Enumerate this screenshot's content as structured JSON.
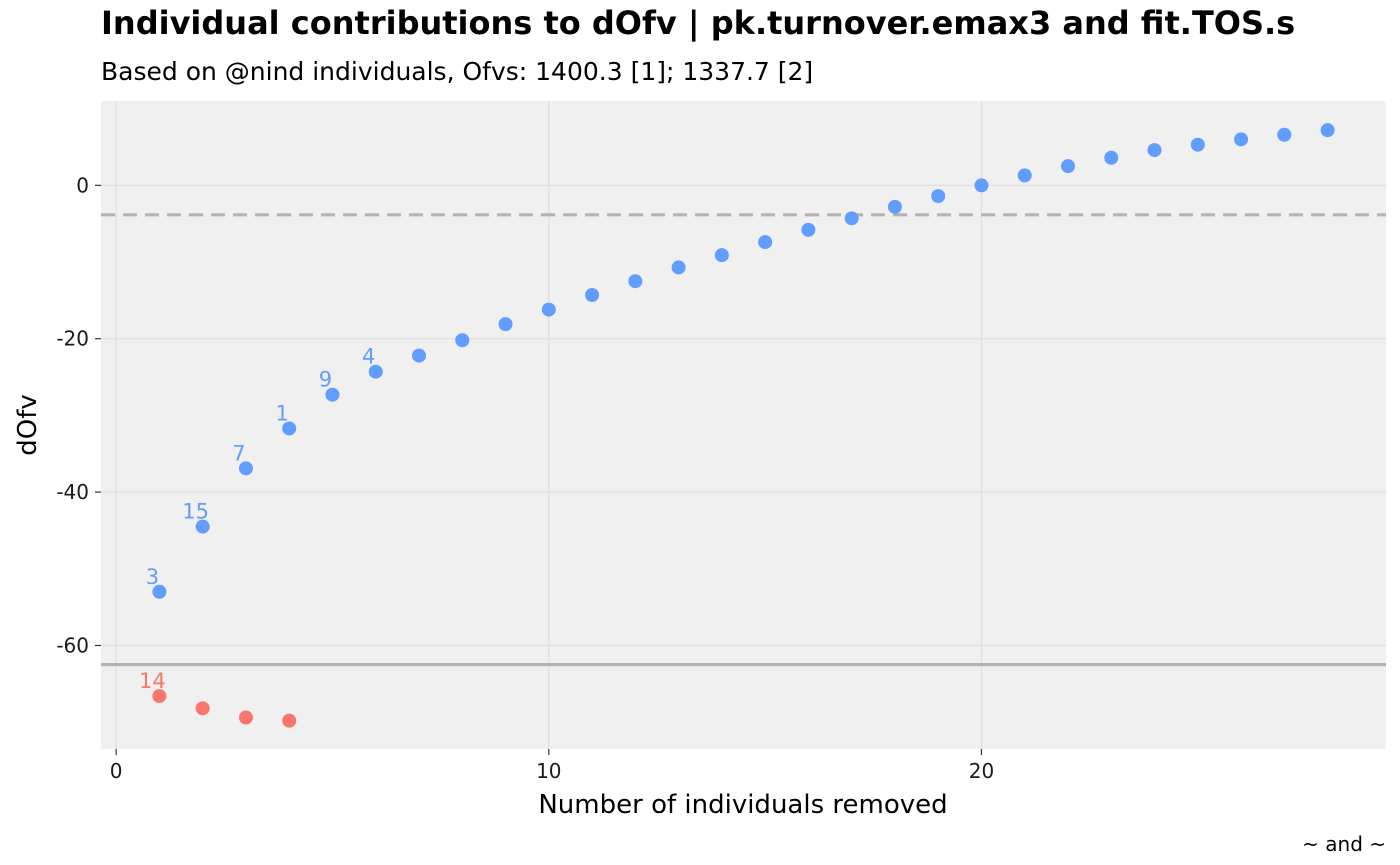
{
  "chart_data": {
    "type": "scatter",
    "title": "Individual contributions to dOfv | pk.turnover.emax3 and fit.TOS.s",
    "subtitle": "Based on @nind individuals, Ofvs: 1400.3 [1]; 1337.7 [2]",
    "xlabel": "Number of individuals removed",
    "ylabel": "dOfv",
    "caption": "~ and ~",
    "xlim": [
      -0.35,
      29.35
    ],
    "ylim": [
      -73.5,
      11
    ],
    "x_ticks": [
      0,
      10,
      20
    ],
    "y_ticks": [
      0,
      -20,
      -40,
      -60
    ],
    "grid": true,
    "reference_lines": [
      {
        "style": "dashed",
        "y": -3.84,
        "color": "#b3b3b3"
      },
      {
        "style": "solid",
        "y": -62.5,
        "color": "#b3b3b3"
      }
    ],
    "series": [
      {
        "color": "#619cff",
        "points": [
          {
            "x": 1,
            "y": -53.0,
            "label": "3"
          },
          {
            "x": 2,
            "y": -44.5,
            "label": "15"
          },
          {
            "x": 3,
            "y": -36.9,
            "label": "7"
          },
          {
            "x": 4,
            "y": -31.7,
            "label": "1"
          },
          {
            "x": 5,
            "y": -27.3,
            "label": "9"
          },
          {
            "x": 6,
            "y": -24.3,
            "label": "4"
          },
          {
            "x": 7,
            "y": -22.2,
            "label": ""
          },
          {
            "x": 8,
            "y": -20.2,
            "label": ""
          },
          {
            "x": 9,
            "y": -18.1,
            "label": ""
          },
          {
            "x": 10,
            "y": -16.2,
            "label": ""
          },
          {
            "x": 11,
            "y": -14.3,
            "label": ""
          },
          {
            "x": 12,
            "y": -12.5,
            "label": ""
          },
          {
            "x": 13,
            "y": -10.7,
            "label": ""
          },
          {
            "x": 14,
            "y": -9.1,
            "label": ""
          },
          {
            "x": 15,
            "y": -7.4,
            "label": ""
          },
          {
            "x": 16,
            "y": -5.8,
            "label": ""
          },
          {
            "x": 17,
            "y": -4.3,
            "label": ""
          },
          {
            "x": 18,
            "y": -2.8,
            "label": ""
          },
          {
            "x": 19,
            "y": -1.4,
            "label": ""
          },
          {
            "x": 20,
            "y": 0.0,
            "label": ""
          },
          {
            "x": 21,
            "y": 1.3,
            "label": ""
          },
          {
            "x": 22,
            "y": 2.5,
            "label": ""
          },
          {
            "x": 23,
            "y": 3.6,
            "label": ""
          },
          {
            "x": 24,
            "y": 4.6,
            "label": ""
          },
          {
            "x": 25,
            "y": 5.3,
            "label": ""
          },
          {
            "x": 26,
            "y": 6.0,
            "label": ""
          },
          {
            "x": 27,
            "y": 6.6,
            "label": ""
          },
          {
            "x": 28,
            "y": 7.2,
            "label": ""
          }
        ]
      },
      {
        "color": "#f8766d",
        "points": [
          {
            "x": 1,
            "y": -66.6,
            "label": "14"
          },
          {
            "x": 2,
            "y": -68.2,
            "label": ""
          },
          {
            "x": 3,
            "y": -69.4,
            "label": ""
          },
          {
            "x": 4,
            "y": -69.8,
            "label": ""
          }
        ]
      }
    ]
  }
}
